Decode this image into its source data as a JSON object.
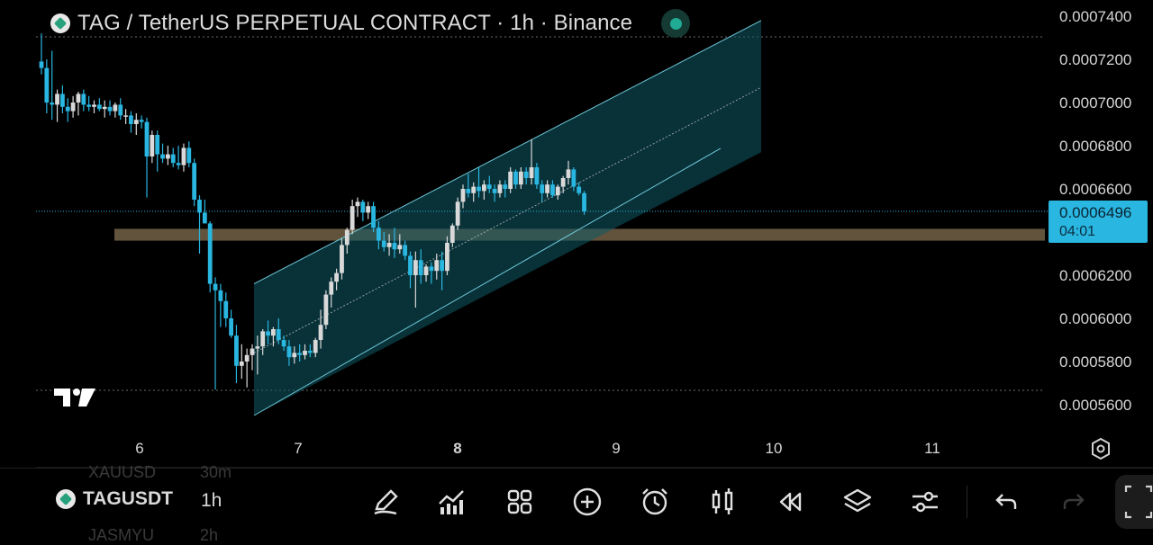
{
  "header": {
    "title": "TAG / TetherUS PERPETUAL CONTRACT · 1h · Binance"
  },
  "price_tag": {
    "price": "0.0006496",
    "countdown": "04:01"
  },
  "colors": {
    "up": "#d9d9d9",
    "down": "#29b6e0",
    "channel_fill": "#0f5a66",
    "zone": "#8c7656",
    "background": "#000000",
    "accent": "#29b6e0"
  },
  "bottom_bar": {
    "symbol": "TAGUSDT",
    "timeframe": "1h",
    "faded_above_symbol": "XAUUSD",
    "faded_above_tf": "30m",
    "faded_below_symbol": "JASMYU",
    "faded_below_tf": "2h",
    "tools": [
      "pencil-icon",
      "indicators-icon",
      "grid-icon",
      "add-icon",
      "alarm-icon",
      "candles-icon",
      "replay-icon",
      "layers-icon",
      "settings-sliders-icon",
      "undo-icon",
      "redo-icon"
    ]
  },
  "chart_data": {
    "type": "candlestick",
    "title": "TAG / TetherUS PERPETUAL CONTRACT · 1h · Binance",
    "x_ticks": [
      "6",
      "7",
      "8",
      "9",
      "10",
      "11"
    ],
    "y_ticks": [
      "0.0007400",
      "0.0007200",
      "0.0007000",
      "0.0006800",
      "0.0006600",
      "0.0006400",
      "0.0006200",
      "0.0006000",
      "0.0005800",
      "0.0005600"
    ],
    "ylim": [
      0.000553,
      0.000748
    ],
    "last_price": 0.0006496,
    "candles": [
      [
        0.000719,
        0.000732,
        0.000713,
        0.000716
      ],
      [
        0.000716,
        0.00072,
        0.000695,
        0.0007
      ],
      [
        0.0007,
        0.000724,
        0.000692,
        0.000699
      ],
      [
        0.000699,
        0.000706,
        0.000691,
        0.000704
      ],
      [
        0.000704,
        0.000708,
        0.000695,
        0.000698
      ],
      [
        0.000698,
        0.000702,
        0.000691,
        0.000696
      ],
      [
        0.000696,
        0.000703,
        0.000693,
        0.0007
      ],
      [
        0.0007,
        0.000705,
        0.000694,
        0.000704
      ],
      [
        0.000704,
        0.000706,
        0.000696,
        0.000699
      ],
      [
        0.000699,
        0.000703,
        0.000696,
        0.000698
      ],
      [
        0.000698,
        0.000701,
        0.000695,
        0.000699
      ],
      [
        0.000699,
        0.000702,
        0.000696,
        0.000697
      ],
      [
        0.000697,
        0.000701,
        0.000693,
        0.000698
      ],
      [
        0.000698,
        0.000701,
        0.000694,
        0.000696
      ],
      [
        0.000696,
        0.0007,
        0.000693,
        0.000699
      ],
      [
        0.000699,
        0.000702,
        0.000692,
        0.000694
      ],
      [
        0.000694,
        0.000697,
        0.00069,
        0.000694
      ],
      [
        0.000694,
        0.000696,
        0.000686,
        0.00069
      ],
      [
        0.00069,
        0.000695,
        0.000685,
        0.000692
      ],
      [
        0.000692,
        0.000694,
        0.000688,
        0.000691
      ],
      [
        0.000691,
        0.000693,
        0.000656,
        0.000675
      ],
      [
        0.000675,
        0.000687,
        0.000672,
        0.000685
      ],
      [
        0.000685,
        0.000687,
        0.000668,
        0.000676
      ],
      [
        0.000676,
        0.000681,
        0.000672,
        0.000674
      ],
      [
        0.000674,
        0.00068,
        0.000671,
        0.000676
      ],
      [
        0.000676,
        0.000679,
        0.00067,
        0.000672
      ],
      [
        0.000672,
        0.00068,
        0.000669,
        0.000671
      ],
      [
        0.000671,
        0.000681,
        0.000668,
        0.000679
      ],
      [
        0.000679,
        0.000682,
        0.00067,
        0.000672
      ],
      [
        0.000672,
        0.000674,
        0.000652,
        0.000655
      ],
      [
        0.000655,
        0.000657,
        0.00063,
        0.000649
      ],
      [
        0.000649,
        0.000655,
        0.000644,
        0.000644
      ],
      [
        0.000644,
        0.000645,
        0.000612,
        0.000616
      ],
      [
        0.000616,
        0.000619,
        0.000567,
        0.000613
      ],
      [
        0.000613,
        0.000616,
        0.000596,
        0.000608
      ],
      [
        0.000608,
        0.000612,
        0.000596,
        0.0006
      ],
      [
        0.0006,
        0.000604,
        0.000591,
        0.000592
      ],
      [
        0.000592,
        0.000597,
        0.00057,
        0.000578
      ],
      [
        0.000578,
        0.000588,
        0.000572,
        0.00058
      ],
      [
        0.00058,
        0.000586,
        0.000568,
        0.000583
      ],
      [
        0.000583,
        0.000588,
        0.000576,
        0.000586
      ],
      [
        0.000586,
        0.000592,
        0.000574,
        0.000587
      ],
      [
        0.000587,
        0.000595,
        0.000583,
        0.000594
      ],
      [
        0.000594,
        0.000599,
        0.000588,
        0.000592
      ],
      [
        0.000592,
        0.000596,
        0.000587,
        0.000595
      ],
      [
        0.000595,
        0.0006,
        0.000588,
        0.00059
      ],
      [
        0.00059,
        0.000592,
        0.000585,
        0.000587
      ],
      [
        0.000587,
        0.00059,
        0.000578,
        0.000582
      ],
      [
        0.000582,
        0.000587,
        0.000579,
        0.000584
      ],
      [
        0.000584,
        0.000588,
        0.00058,
        0.000583
      ],
      [
        0.000583,
        0.000588,
        0.000581,
        0.000585
      ],
      [
        0.000585,
        0.000588,
        0.000582,
        0.000584
      ],
      [
        0.000584,
        0.000591,
        0.000582,
        0.00059
      ],
      [
        0.00059,
        0.000604,
        0.000586,
        0.000597
      ],
      [
        0.000597,
        0.000613,
        0.000595,
        0.000611
      ],
      [
        0.000611,
        0.000619,
        0.000605,
        0.000617
      ],
      [
        0.000617,
        0.000623,
        0.000613,
        0.000621
      ],
      [
        0.000621,
        0.000637,
        0.000618,
        0.000634
      ],
      [
        0.000634,
        0.000642,
        0.00063,
        0.000641
      ],
      [
        0.000641,
        0.000655,
        0.000639,
        0.000652
      ],
      [
        0.000652,
        0.000656,
        0.000647,
        0.000654
      ],
      [
        0.000654,
        0.000655,
        0.000645,
        0.000649
      ],
      [
        0.000649,
        0.000654,
        0.000646,
        0.000652
      ],
      [
        0.000652,
        0.000654,
        0.00064,
        0.000642
      ],
      [
        0.000642,
        0.000645,
        0.000632,
        0.000636
      ],
      [
        0.000636,
        0.00064,
        0.000631,
        0.000633
      ],
      [
        0.000633,
        0.000639,
        0.000629,
        0.000635
      ],
      [
        0.000635,
        0.000642,
        0.000628,
        0.000632
      ],
      [
        0.000632,
        0.000639,
        0.00063,
        0.000634
      ],
      [
        0.000634,
        0.000636,
        0.000627,
        0.000629
      ],
      [
        0.000629,
        0.000631,
        0.000614,
        0.00062
      ],
      [
        0.00062,
        0.000631,
        0.000605,
        0.000627
      ],
      [
        0.000627,
        0.000632,
        0.000616,
        0.00062
      ],
      [
        0.00062,
        0.000625,
        0.000617,
        0.000624
      ],
      [
        0.000624,
        0.000626,
        0.000616,
        0.000622
      ],
      [
        0.000622,
        0.00063,
        0.000618,
        0.000627
      ],
      [
        0.000627,
        0.000631,
        0.000613,
        0.000622
      ],
      [
        0.000622,
        0.000638,
        0.00062,
        0.000635
      ],
      [
        0.000635,
        0.000644,
        0.000633,
        0.000643
      ],
      [
        0.000643,
        0.000656,
        0.000641,
        0.000654
      ],
      [
        0.000654,
        0.000662,
        0.000651,
        0.00066
      ],
      [
        0.00066,
        0.000667,
        0.000656,
        0.000658
      ],
      [
        0.000658,
        0.000663,
        0.000654,
        0.000661
      ],
      [
        0.000661,
        0.00067,
        0.000656,
        0.000659
      ],
      [
        0.000659,
        0.000664,
        0.000655,
        0.000662
      ],
      [
        0.000662,
        0.000666,
        0.000658,
        0.00066
      ],
      [
        0.00066,
        0.000662,
        0.000654,
        0.000658
      ],
      [
        0.000658,
        0.000664,
        0.000656,
        0.000662
      ],
      [
        0.000662,
        0.000664,
        0.000656,
        0.00066
      ],
      [
        0.00066,
        0.00067,
        0.000658,
        0.000668
      ],
      [
        0.000668,
        0.000669,
        0.00066,
        0.000662
      ],
      [
        0.000662,
        0.00067,
        0.00066,
        0.000668
      ],
      [
        0.000668,
        0.00067,
        0.000662,
        0.000665
      ],
      [
        0.000665,
        0.000683,
        0.000662,
        0.00067
      ],
      [
        0.00067,
        0.000672,
        0.00066,
        0.000662
      ],
      [
        0.000662,
        0.000664,
        0.000654,
        0.000658
      ],
      [
        0.000658,
        0.000664,
        0.000656,
        0.000662
      ],
      [
        0.000662,
        0.000664,
        0.000656,
        0.000657
      ],
      [
        0.000657,
        0.000662,
        0.000655,
        0.000661
      ],
      [
        0.000661,
        0.000666,
        0.000658,
        0.000665
      ],
      [
        0.000665,
        0.000673,
        0.000662,
        0.000669
      ],
      [
        0.000669,
        0.00067,
        0.000659,
        0.000661
      ],
      [
        0.000661,
        0.000663,
        0.000657,
        0.000658
      ],
      [
        0.000658,
        0.000659,
        0.000648,
        0.0006496
      ]
    ],
    "channel": {
      "upper": [
        [
          0.000616,
          0.000738
        ],
        [
          0.000616,
          0.000677
        ]
      ],
      "mid": [
        0.000584,
        0.000707
      ],
      "lower": [
        0.000555,
        0.000669
      ]
    },
    "support_zone": [
      0.000636,
      0.0006415
    ]
  }
}
